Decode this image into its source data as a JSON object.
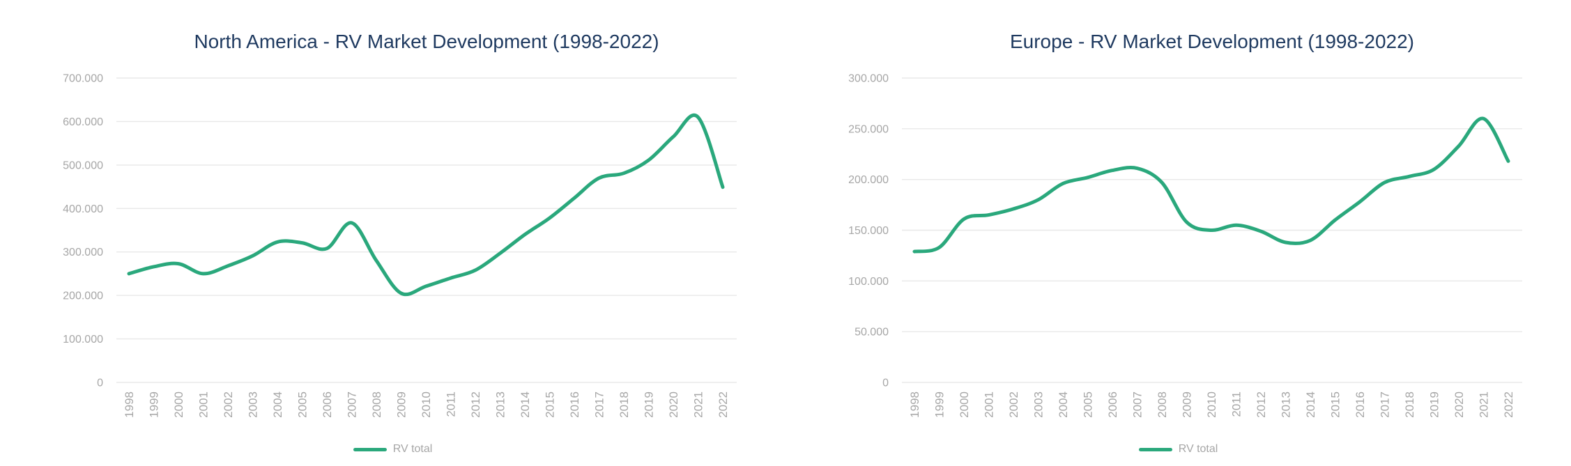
{
  "style": {
    "background": "#ffffff",
    "line_color": "#2aa87c",
    "title_color": "#1f3a60",
    "axis_label_color": "#a6a6a6",
    "gridline_color": "#e8e8e8"
  },
  "chart_data": [
    {
      "type": "line",
      "title": "North America - RV Market Development (1998-2022)",
      "categories": [
        "1998",
        "1999",
        "2000",
        "2001",
        "2002",
        "2003",
        "2004",
        "2005",
        "2006",
        "2007",
        "2008",
        "2009",
        "2010",
        "2011",
        "2012",
        "2013",
        "2014",
        "2015",
        "2016",
        "2017",
        "2018",
        "2019",
        "2020",
        "2021",
        "2022"
      ],
      "series": [
        {
          "name": "RV total",
          "color": "#2aa87c",
          "values": [
            250000,
            266000,
            273000,
            250000,
            268000,
            291000,
            323000,
            321000,
            308000,
            367000,
            280000,
            205000,
            221000,
            240000,
            258000,
            297000,
            340000,
            378000,
            424000,
            470000,
            481000,
            511000,
            565000,
            610000,
            449000
          ]
        }
      ],
      "xlabel": "",
      "ylabel": "",
      "ylim": [
        0,
        700000
      ],
      "yticks": [
        0,
        100000,
        200000,
        300000,
        400000,
        500000,
        600000,
        700000
      ],
      "ytick_labels": [
        "0",
        "100.000",
        "200.000",
        "300.000",
        "400.000",
        "500.000",
        "600.000",
        "700.000"
      ],
      "grid": "horizontal",
      "smooth": true,
      "legend_position": "bottom"
    },
    {
      "type": "line",
      "title": "Europe - RV Market Development (1998-2022)",
      "categories": [
        "1998",
        "1999",
        "2000",
        "2001",
        "2002",
        "2003",
        "2004",
        "2005",
        "2006",
        "2007",
        "2008",
        "2009",
        "2010",
        "2011",
        "2012",
        "2013",
        "2014",
        "2015",
        "2016",
        "2017",
        "2018",
        "2019",
        "2020",
        "2021",
        "2022"
      ],
      "series": [
        {
          "name": "RV total",
          "color": "#2aa87c",
          "values": [
            129000,
            133000,
            161000,
            165000,
            171000,
            180000,
            196000,
            202000,
            209000,
            211000,
            197000,
            158000,
            150000,
            155000,
            149000,
            138000,
            140000,
            160000,
            178000,
            197000,
            203000,
            210000,
            233000,
            260000,
            218000
          ]
        }
      ],
      "xlabel": "",
      "ylabel": "",
      "ylim": [
        0,
        300000
      ],
      "yticks": [
        0,
        50000,
        100000,
        150000,
        200000,
        250000,
        300000
      ],
      "ytick_labels": [
        "0",
        "50.000",
        "100.000",
        "150.000",
        "200.000",
        "250.000",
        "300.000"
      ],
      "grid": "horizontal",
      "smooth": true,
      "legend_position": "bottom"
    }
  ]
}
